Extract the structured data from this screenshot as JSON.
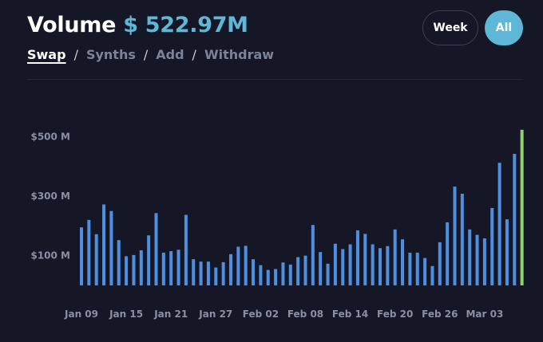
{
  "header": {
    "title": "Volume",
    "amount": "$ 522.97M"
  },
  "tabs": [
    {
      "label": "Swap",
      "active": true
    },
    {
      "label": "Synths",
      "active": false
    },
    {
      "label": "Add",
      "active": false
    },
    {
      "label": "Withdraw",
      "active": false
    }
  ],
  "tab_separator": "/",
  "buttons": {
    "week": "Week",
    "all": "All"
  },
  "colors": {
    "accent": "#5fb7d8",
    "bar": "#4f8fe0",
    "bar_latest": "#8fd16f",
    "background": "#151726"
  },
  "chart_data": {
    "type": "bar",
    "ylim": [
      0,
      540
    ],
    "ytick_values": [
      100,
      300,
      500
    ],
    "ytick_labels": [
      "$100 M",
      "$300 M",
      "$500 M"
    ],
    "xtick_labels": [
      "Jan 09",
      "Jan 15",
      "Jan 21",
      "Jan 27",
      "Feb 02",
      "Feb 08",
      "Feb 14",
      "Feb 20",
      "Feb 26",
      "Mar 03"
    ],
    "xtick_every": 6,
    "values": [
      195,
      220,
      172,
      272,
      250,
      152,
      98,
      102,
      118,
      168,
      243,
      110,
      115,
      120,
      237,
      88,
      80,
      80,
      60,
      78,
      105,
      130,
      133,
      88,
      68,
      52,
      55,
      77,
      70,
      95,
      100,
      203,
      112,
      73,
      140,
      122,
      138,
      185,
      173,
      138,
      125,
      132,
      188,
      155,
      110,
      110,
      92,
      65,
      145,
      212,
      332,
      308,
      188,
      170,
      158,
      260,
      412,
      222,
      442,
      522.97
    ]
  }
}
